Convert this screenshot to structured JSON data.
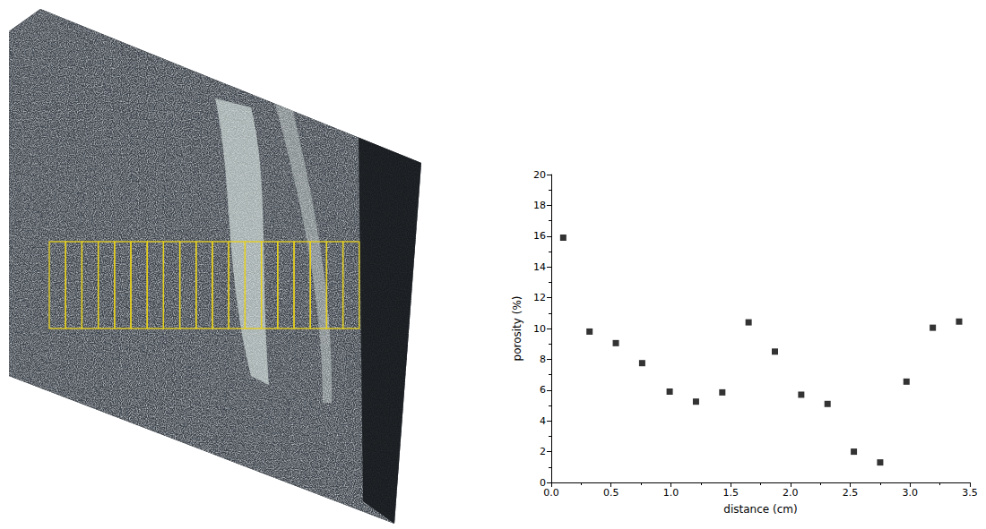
{
  "chart_data": {
    "type": "scatter",
    "x": [
      0.1,
      0.32,
      0.54,
      0.76,
      0.99,
      1.21,
      1.43,
      1.65,
      1.87,
      2.09,
      2.31,
      2.53,
      2.75,
      2.97,
      3.19,
      3.41
    ],
    "values": [
      15.9,
      9.8,
      9.05,
      7.75,
      5.9,
      5.25,
      5.85,
      10.4,
      8.5,
      5.7,
      5.1,
      2.0,
      1.3,
      6.55,
      10.05,
      10.45
    ],
    "color": "#000000",
    "marker": "square",
    "xlabel": "distance (cm)",
    "ylabel": "porosity (%)",
    "xlim": [
      0,
      3.5
    ],
    "xticks": [
      {
        "value": 0,
        "label": "0.0"
      },
      {
        "value": 0.5,
        "label": "0.5"
      },
      {
        "value": 1,
        "label": "1.0"
      },
      {
        "value": 1.5,
        "label": "1.5"
      },
      {
        "value": 2,
        "label": "2.0"
      },
      {
        "value": 2.5,
        "label": "2.5"
      },
      {
        "value": 3,
        "label": "3.0"
      },
      {
        "value": 3.5,
        "label": "3.5"
      }
    ],
    "ylim": [
      0,
      20
    ],
    "yticks": [
      0,
      2,
      4,
      6,
      8,
      10,
      12,
      14,
      16,
      18,
      20
    ],
    "grid": false
  }
}
